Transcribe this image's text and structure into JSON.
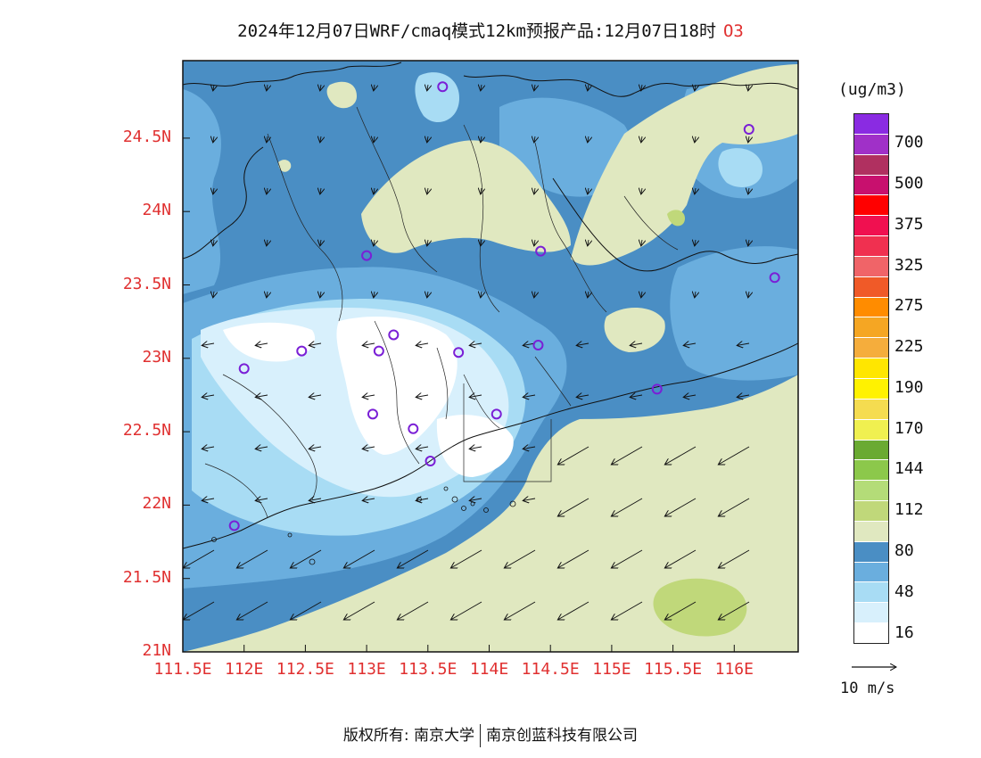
{
  "title": {
    "main": "2024年12月07日WRF/cmaq模式12km预报产品:12月07日18时",
    "pollutant": "O3"
  },
  "map": {
    "lat_ticks": [
      "24.5N",
      "24N",
      "23.5N",
      "23N",
      "22.5N",
      "22N",
      "21.5N",
      "21N"
    ],
    "lon_ticks": [
      "111.5E",
      "112E",
      "112.5E",
      "113E",
      "113.5E",
      "114E",
      "114.5E",
      "115E",
      "115.5E",
      "116E"
    ],
    "stations": [
      {
        "lon": 113.62,
        "lat": 24.85
      },
      {
        "lon": 116.12,
        "lat": 24.56
      },
      {
        "lon": 113.0,
        "lat": 23.7
      },
      {
        "lon": 114.42,
        "lat": 23.73
      },
      {
        "lon": 116.33,
        "lat": 23.55
      },
      {
        "lon": 112.47,
        "lat": 23.05
      },
      {
        "lon": 112.0,
        "lat": 22.93
      },
      {
        "lon": 113.22,
        "lat": 23.16
      },
      {
        "lon": 113.1,
        "lat": 23.05
      },
      {
        "lon": 113.75,
        "lat": 23.04
      },
      {
        "lon": 114.4,
        "lat": 23.09
      },
      {
        "lon": 115.37,
        "lat": 22.79
      },
      {
        "lon": 113.05,
        "lat": 22.62
      },
      {
        "lon": 113.38,
        "lat": 22.52
      },
      {
        "lon": 114.06,
        "lat": 22.62
      },
      {
        "lon": 113.52,
        "lat": 22.3
      },
      {
        "lon": 111.92,
        "lat": 21.86
      }
    ]
  },
  "legend": {
    "units": "(ug/m3)",
    "bins": [
      {
        "color": "#8a2be2"
      },
      {
        "color": "#a030c8"
      },
      {
        "color": "#b03060"
      },
      {
        "color": "#c8106e"
      },
      {
        "color": "#ff0000"
      },
      {
        "color": "#f01050"
      },
      {
        "color": "#f03050"
      },
      {
        "color": "#f06468"
      },
      {
        "color": "#f05a28"
      },
      {
        "color": "#ff8c00"
      },
      {
        "color": "#f5a623"
      },
      {
        "color": "#f5ad3c"
      },
      {
        "color": "#ffe600"
      },
      {
        "color": "#fff200"
      },
      {
        "color": "#f5dc50"
      },
      {
        "color": "#f0f050"
      },
      {
        "color": "#6aaa32"
      },
      {
        "color": "#8cc84b"
      },
      {
        "color": "#b4dc78"
      },
      {
        "color": "#c0d87a"
      },
      {
        "color": "#e0e8c0"
      },
      {
        "color": "#4a8ec4"
      },
      {
        "color": "#6aaede"
      },
      {
        "color": "#a8dcf4"
      },
      {
        "color": "#d8f0fc"
      },
      {
        "color": "#ffffff"
      }
    ],
    "labels": [
      {
        "text": "700",
        "bin": 1
      },
      {
        "text": "500",
        "bin": 3
      },
      {
        "text": "375",
        "bin": 5
      },
      {
        "text": "325",
        "bin": 7
      },
      {
        "text": "275",
        "bin": 9
      },
      {
        "text": "225",
        "bin": 11
      },
      {
        "text": "190",
        "bin": 13
      },
      {
        "text": "170",
        "bin": 15
      },
      {
        "text": "144",
        "bin": 17
      },
      {
        "text": "112",
        "bin": 19
      },
      {
        "text": "80",
        "bin": 21
      },
      {
        "text": "48",
        "bin": 23
      },
      {
        "text": "16",
        "bin": 25
      }
    ]
  },
  "wind_reference": {
    "label": "10 m/s",
    "speed": 10
  },
  "copyright": {
    "left": "版权所有: 南京大学",
    "right": "南京创蓝科技有限公司"
  }
}
